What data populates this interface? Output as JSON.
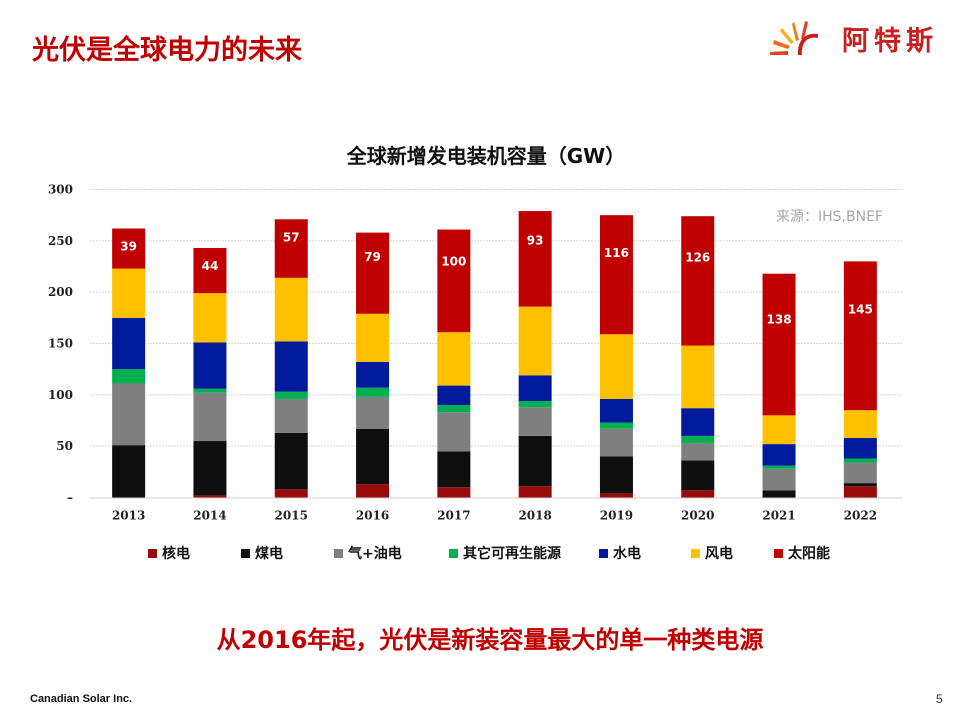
{
  "slide": {
    "title": "光伏是全球电力的未来",
    "logo_text": "阿特斯",
    "conclusion": "从2016年起，光伏是新装容量最大的单一种类电源",
    "footer_company": "Canadian Solar Inc.",
    "page_number": "5",
    "source_note": "来源：IHS,BNEF"
  },
  "colors": {
    "accent_red": "#c00000",
    "logo_red": "#c8201f"
  },
  "chart_data": {
    "type": "bar",
    "stacked": true,
    "title": "全球新增发电装机容量（GW）",
    "xlabel": "",
    "ylabel": "",
    "ylim": [
      0,
      300
    ],
    "yticks": [
      0,
      50,
      100,
      150,
      200,
      250,
      300
    ],
    "ytick_labels": [
      "–",
      "50",
      "100",
      "150",
      "200",
      "250",
      "300"
    ],
    "grid": true,
    "legend_position": "bottom",
    "categories": [
      "2013",
      "2014",
      "2015",
      "2016",
      "2017",
      "2018",
      "2019",
      "2020",
      "2021",
      "2022"
    ],
    "series": [
      {
        "name": "核电",
        "color": "#990a0a",
        "values": [
          0,
          2,
          8,
          13,
          10,
          11,
          4,
          7,
          0,
          11
        ]
      },
      {
        "name": "煤电",
        "color": "#0f0f0f",
        "values": [
          51,
          53,
          55,
          54,
          35,
          49,
          36,
          29,
          7,
          3
        ]
      },
      {
        "name": "气+油电",
        "color": "#7f7f7f",
        "values": [
          60,
          47,
          33,
          31,
          38,
          28,
          27,
          17,
          21,
          20
        ]
      },
      {
        "name": "其它可再生能源",
        "color": "#00b050",
        "values": [
          14,
          4,
          7,
          9,
          7,
          6,
          6,
          7,
          3,
          4
        ]
      },
      {
        "name": "水电",
        "color": "#001a9c",
        "values": [
          50,
          45,
          49,
          25,
          19,
          25,
          23,
          27,
          21,
          20
        ]
      },
      {
        "name": "风电",
        "color": "#ffc000",
        "values": [
          48,
          48,
          62,
          47,
          52,
          67,
          63,
          61,
          28,
          27
        ]
      },
      {
        "name": "太阳能",
        "color": "#c00000",
        "values": [
          39,
          44,
          57,
          79,
          100,
          93,
          116,
          126,
          138,
          145
        ],
        "show_labels": true
      }
    ]
  }
}
